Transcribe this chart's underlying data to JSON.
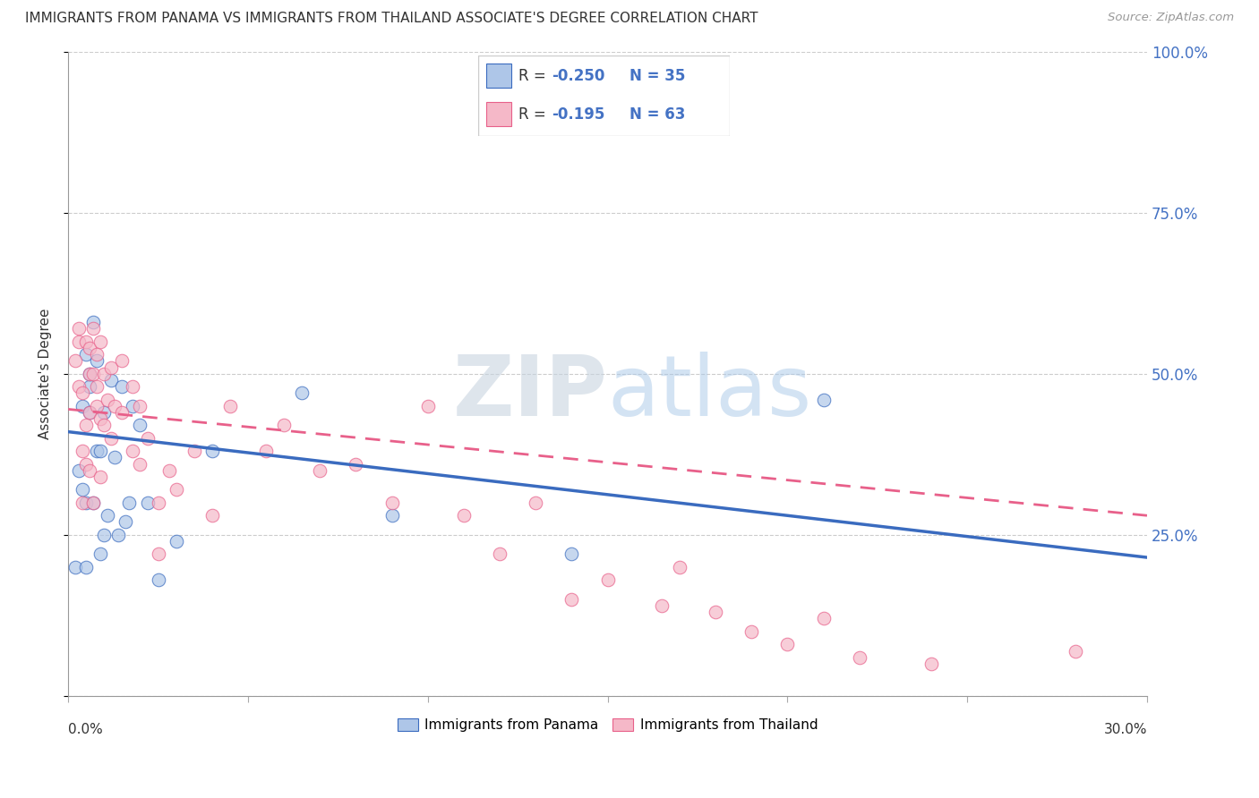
{
  "title": "IMMIGRANTS FROM PANAMA VS IMMIGRANTS FROM THAILAND ASSOCIATE'S DEGREE CORRELATION CHART",
  "source": "Source: ZipAtlas.com",
  "ylabel": "Associate's Degree",
  "xlim": [
    0.0,
    30.0
  ],
  "ylim": [
    0.0,
    100.0
  ],
  "yticks": [
    0,
    25,
    50,
    75,
    100
  ],
  "ytick_labels": [
    "",
    "25.0%",
    "50.0%",
    "75.0%",
    "100.0%"
  ],
  "watermark": "ZIPatlas",
  "panama_color": "#aec6e8",
  "thailand_color": "#f5b8c8",
  "panama_line_color": "#3a6bbf",
  "thailand_line_color": "#e8608a",
  "panama_x": [
    0.2,
    0.3,
    0.4,
    0.4,
    0.5,
    0.5,
    0.5,
    0.6,
    0.6,
    0.6,
    0.7,
    0.7,
    0.8,
    0.8,
    0.9,
    0.9,
    1.0,
    1.0,
    1.1,
    1.2,
    1.3,
    1.4,
    1.5,
    1.6,
    1.7,
    1.8,
    2.0,
    2.2,
    2.5,
    3.0,
    4.0,
    6.5,
    9.0,
    14.0,
    21.0
  ],
  "panama_y": [
    20,
    35,
    32,
    45,
    30,
    20,
    53,
    48,
    50,
    44,
    58,
    30,
    52,
    38,
    38,
    22,
    44,
    25,
    28,
    49,
    37,
    25,
    48,
    27,
    30,
    45,
    42,
    30,
    18,
    24,
    38,
    47,
    28,
    22,
    46
  ],
  "thailand_x": [
    0.2,
    0.3,
    0.3,
    0.3,
    0.4,
    0.4,
    0.4,
    0.5,
    0.5,
    0.5,
    0.6,
    0.6,
    0.6,
    0.6,
    0.7,
    0.7,
    0.7,
    0.8,
    0.8,
    0.8,
    0.9,
    0.9,
    0.9,
    1.0,
    1.0,
    1.1,
    1.2,
    1.2,
    1.3,
    1.5,
    1.5,
    1.8,
    1.8,
    2.0,
    2.0,
    2.2,
    2.5,
    2.5,
    2.8,
    3.0,
    3.5,
    4.0,
    4.5,
    5.5,
    6.0,
    7.0,
    8.0,
    9.0,
    10.0,
    11.0,
    12.0,
    13.0,
    14.0,
    15.0,
    16.5,
    17.0,
    18.0,
    19.0,
    20.0,
    21.0,
    22.0,
    24.0,
    28.0
  ],
  "thailand_y": [
    52,
    55,
    48,
    57,
    47,
    38,
    30,
    55,
    42,
    36,
    54,
    50,
    44,
    35,
    57,
    50,
    30,
    53,
    45,
    48,
    55,
    43,
    34,
    50,
    42,
    46,
    51,
    40,
    45,
    52,
    44,
    48,
    38,
    45,
    36,
    40,
    30,
    22,
    35,
    32,
    38,
    28,
    45,
    38,
    42,
    35,
    36,
    30,
    45,
    28,
    22,
    30,
    15,
    18,
    14,
    20,
    13,
    10,
    8,
    12,
    6,
    5,
    7
  ],
  "panama_R": -0.25,
  "panama_intercept": 41.0,
  "panama_slope": -0.65,
  "thailand_R": -0.195,
  "thailand_intercept": 44.5,
  "thailand_slope": -0.55
}
